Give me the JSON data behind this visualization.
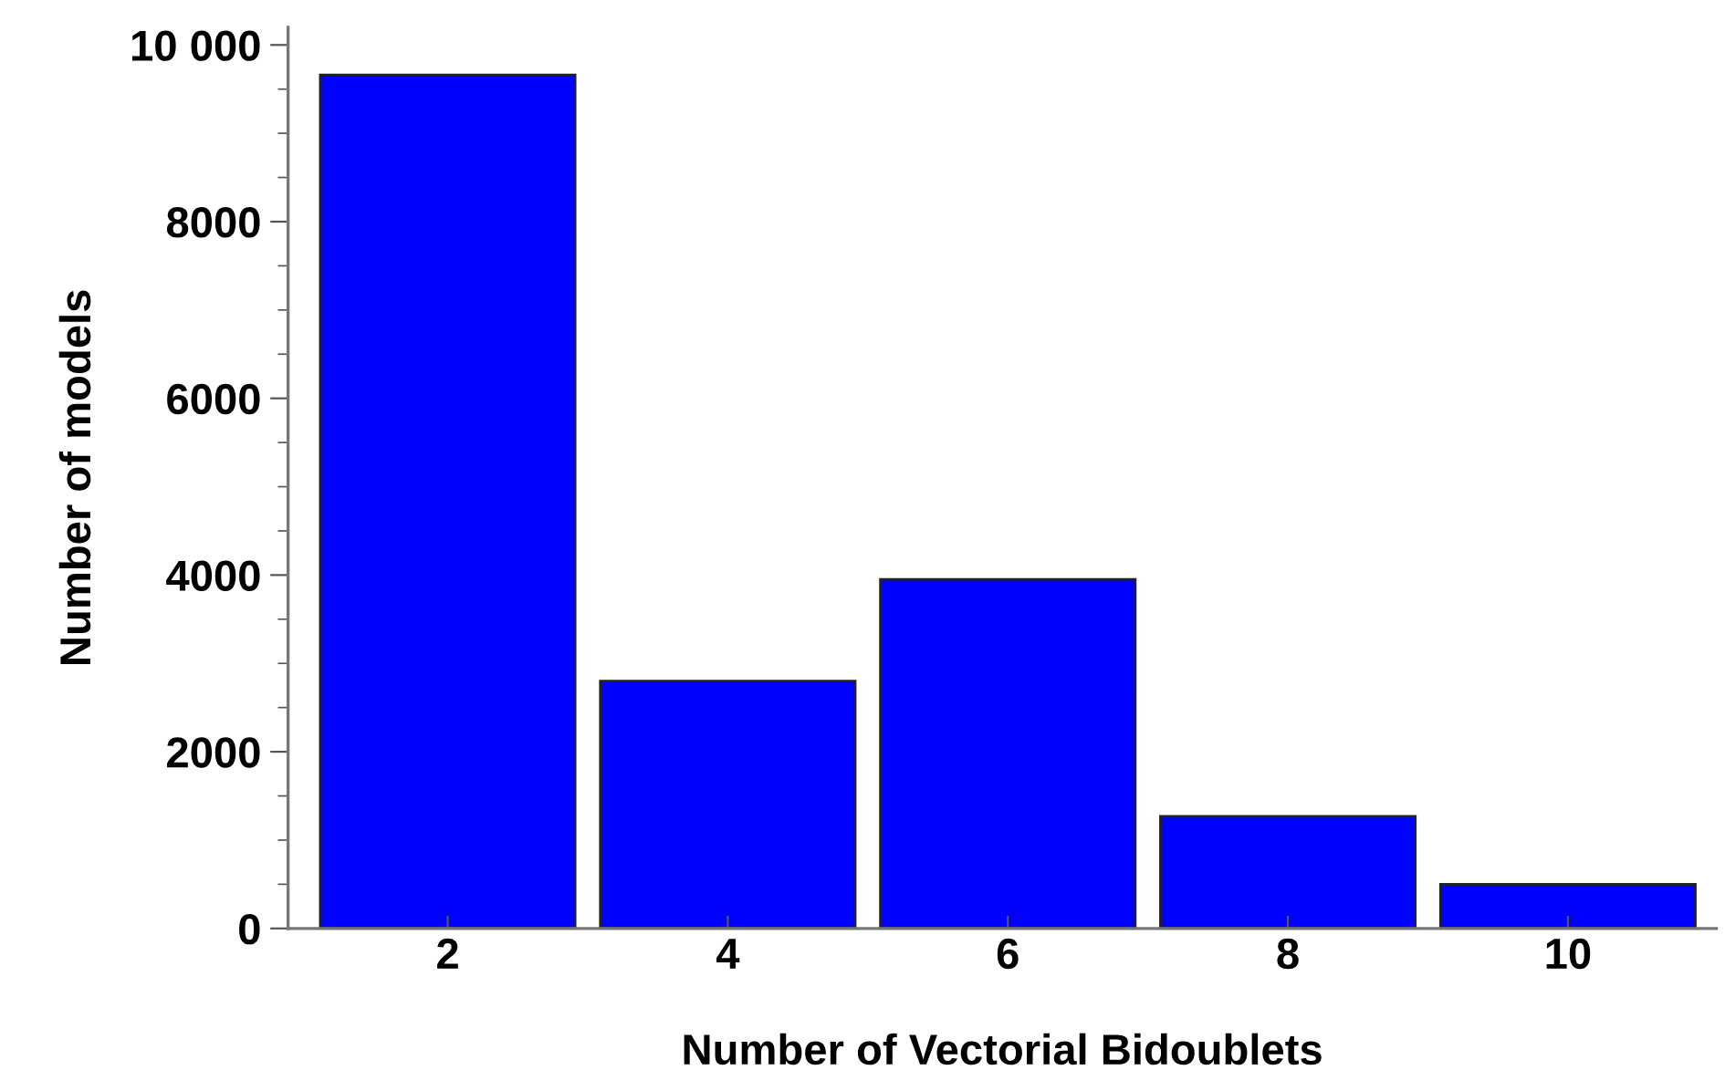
{
  "chart_data": {
    "type": "bar",
    "xlabel": "Number of Vectorial Bidoublets",
    "ylabel": "Number of models",
    "categories": [
      "2",
      "4",
      "6",
      "8",
      "10"
    ],
    "values": [
      9660,
      2800,
      3950,
      1270,
      500
    ],
    "color": "#0000ff",
    "ylim": [
      0,
      10200
    ],
    "yticks": [
      0,
      2000,
      4000,
      6000,
      8000,
      {
        "value": 10000,
        "label": "10 000"
      }
    ],
    "grid": false,
    "legend": false
  }
}
